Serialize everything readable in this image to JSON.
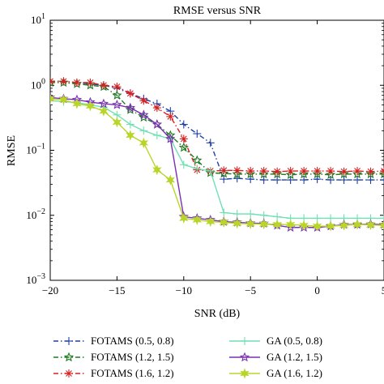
{
  "chart_data": {
    "type": "line",
    "title": "RMSE versus SNR",
    "xlabel": "SNR (dB)",
    "ylabel": "RMSE",
    "xlim": [
      -20,
      5
    ],
    "ylim": [
      0.001,
      10
    ],
    "yscale": "log",
    "x_ticks": [
      -20,
      -15,
      -10,
      -5,
      0,
      5
    ],
    "x_tick_labels": [
      "−20",
      "−15",
      "−10",
      "−5",
      "0",
      "5"
    ],
    "y_ticks": [
      0.001,
      0.01,
      0.1,
      1,
      10
    ],
    "y_tick_labels": [
      {
        "base": "10",
        "exp": "−3"
      },
      {
        "base": "10",
        "exp": "−2"
      },
      {
        "base": "10",
        "exp": "−1"
      },
      {
        "base": "10",
        "exp": "0"
      },
      {
        "base": "10",
        "exp": "1"
      }
    ],
    "grid": false,
    "legend_position": "bottom",
    "x": [
      -20,
      -19,
      -18,
      -17,
      -16,
      -15,
      -14,
      -13,
      -12,
      -11,
      -10,
      -9,
      -8,
      -7,
      -6,
      -5,
      -4,
      -3,
      -2,
      -1,
      0,
      1,
      2,
      3,
      4,
      5
    ],
    "series": [
      {
        "name": "FOTAMS (0.5, 0.8)",
        "color": "#1f3fa8",
        "dash": "6,3,1.5,3",
        "marker": "plus",
        "values": [
          1.15,
          1.15,
          1.1,
          1.05,
          1.0,
          0.9,
          0.75,
          0.62,
          0.52,
          0.4,
          0.25,
          0.18,
          0.13,
          0.036,
          0.037,
          0.036,
          0.035,
          0.035,
          0.035,
          0.035,
          0.036,
          0.035,
          0.035,
          0.035,
          0.035,
          0.035
        ]
      },
      {
        "name": "FOTAMS (1.2, 1.5)",
        "color": "#1f7a1f",
        "dash": "6,3,1.5,3",
        "marker": "star5",
        "values": [
          1.1,
          1.1,
          1.05,
          1.0,
          0.95,
          0.7,
          0.42,
          0.32,
          0.25,
          0.17,
          0.11,
          0.07,
          0.045,
          0.044,
          0.043,
          0.043,
          0.043,
          0.043,
          0.042,
          0.043,
          0.043,
          0.042,
          0.043,
          0.043,
          0.043,
          0.043
        ]
      },
      {
        "name": "FOTAMS (1.6, 1.2)",
        "color": "#d62020",
        "dash": "6,3,1.5,3",
        "marker": "asterisk",
        "values": [
          1.15,
          1.15,
          1.1,
          1.1,
          1.0,
          0.95,
          0.75,
          0.58,
          0.45,
          0.33,
          0.15,
          0.05,
          0.048,
          0.049,
          0.049,
          0.048,
          0.048,
          0.047,
          0.048,
          0.048,
          0.048,
          0.048,
          0.047,
          0.048,
          0.047,
          0.048
        ]
      },
      {
        "name": "GA (0.5, 0.8)",
        "color": "#6fe0b4",
        "dash": "",
        "marker": "plus",
        "values": [
          0.58,
          0.56,
          0.54,
          0.5,
          0.46,
          0.35,
          0.25,
          0.2,
          0.17,
          0.15,
          0.06,
          0.052,
          0.048,
          0.011,
          0.0105,
          0.0105,
          0.01,
          0.0095,
          0.009,
          0.009,
          0.009,
          0.009,
          0.009,
          0.009,
          0.009,
          0.009
        ]
      },
      {
        "name": "GA (1.2, 1.5)",
        "color": "#7a2fb3",
        "dash": "",
        "marker": "star5",
        "values": [
          0.65,
          0.62,
          0.6,
          0.55,
          0.52,
          0.5,
          0.45,
          0.35,
          0.25,
          0.15,
          0.0095,
          0.009,
          0.0085,
          0.008,
          0.0078,
          0.0076,
          0.0075,
          0.007,
          0.0065,
          0.0065,
          0.0065,
          0.0068,
          0.0072,
          0.0072,
          0.0073,
          0.0072
        ]
      },
      {
        "name": "GA (1.6, 1.2)",
        "color": "#b8d629",
        "dash": "",
        "marker": "star6",
        "values": [
          0.62,
          0.6,
          0.52,
          0.48,
          0.4,
          0.27,
          0.17,
          0.13,
          0.05,
          0.035,
          0.009,
          0.0085,
          0.008,
          0.0078,
          0.0075,
          0.0074,
          0.0073,
          0.0072,
          0.0072,
          0.007,
          0.0068,
          0.0068,
          0.007,
          0.0072,
          0.0071,
          0.007
        ]
      }
    ]
  }
}
